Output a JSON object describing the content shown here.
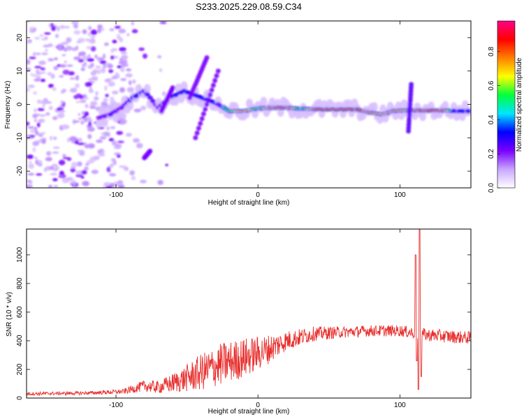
{
  "title": "S233.2025.229.08.59.C34",
  "chart_data": [
    {
      "type": "heatmap",
      "title": "S233.2025.229.08.59.C34",
      "xlabel": "Height of straight line (km)",
      "ylabel": "Frequency (Hz)",
      "xlim": [
        -163,
        150
      ],
      "ylim": [
        -25,
        25
      ],
      "x_ticks": [
        -100,
        0,
        100
      ],
      "y_ticks": [
        -20,
        -10,
        0,
        10,
        20
      ],
      "colorbar": {
        "label": "Normalized spectral amplitude",
        "range": [
          0.0,
          0.98
        ],
        "ticks": [
          0.0,
          0.2,
          0.4,
          0.6,
          0.8
        ],
        "colors": [
          "#ffffff",
          "#c9a6ff",
          "#7a00ff",
          "#0000ff",
          "#00e5ff",
          "#00ff3c",
          "#ffff00",
          "#ff8000",
          "#ff0000",
          "#ff0088"
        ]
      },
      "ridge": {
        "points": [
          {
            "x": -112,
            "y": -4,
            "a": 0.2
          },
          {
            "x": -104,
            "y": -3,
            "a": 0.25
          },
          {
            "x": -96,
            "y": -1,
            "a": 0.22
          },
          {
            "x": -88,
            "y": 2,
            "a": 0.3
          },
          {
            "x": -80,
            "y": 4,
            "a": 0.28
          },
          {
            "x": -70,
            "y": -1,
            "a": 0.22
          },
          {
            "x": -62,
            "y": 2,
            "a": 0.3
          },
          {
            "x": -52,
            "y": 4,
            "a": 0.35
          },
          {
            "x": -30,
            "y": 0.5,
            "a": 0.3
          },
          {
            "x": -20,
            "y": -2,
            "a": 0.6
          },
          {
            "x": -10,
            "y": -2,
            "a": 0.75
          },
          {
            "x": 0,
            "y": -1.2,
            "a": 0.55
          },
          {
            "x": 10,
            "y": -1,
            "a": 0.8
          },
          {
            "x": 20,
            "y": -1,
            "a": 0.85
          },
          {
            "x": 30,
            "y": -1.3,
            "a": 0.5
          },
          {
            "x": 45,
            "y": -1.5,
            "a": 0.97
          },
          {
            "x": 60,
            "y": -1.5,
            "a": 0.97
          },
          {
            "x": 70,
            "y": -1.5,
            "a": 0.9
          },
          {
            "x": 80,
            "y": -2.5,
            "a": 0.75
          },
          {
            "x": 88,
            "y": -3,
            "a": 0.7
          },
          {
            "x": 95,
            "y": -2,
            "a": 0.75
          },
          {
            "x": 103,
            "y": -1.8,
            "a": 0.7
          },
          {
            "x": 118,
            "y": -1.8,
            "a": 0.9
          },
          {
            "x": 130,
            "y": -1.8,
            "a": 0.85
          },
          {
            "x": 140,
            "y": -2,
            "a": 0.35
          },
          {
            "x": 150,
            "y": -2,
            "a": 0.3
          }
        ],
        "streaks": [
          {
            "x0": -36,
            "y0": 14,
            "x1": -48,
            "y1": 2,
            "a": 0.22
          },
          {
            "x0": -28,
            "y0": 10,
            "x1": -44,
            "y1": -10,
            "a": 0.22
          },
          {
            "x0": -60,
            "y0": 5,
            "x1": -68,
            "y1": -2,
            "a": 0.22
          },
          {
            "x0": 108,
            "y0": 6,
            "x1": 106,
            "y1": -8,
            "a": 0.25
          },
          {
            "x0": -76,
            "y0": -14,
            "x1": -80,
            "y1": -16,
            "a": 0.22
          }
        ]
      }
    },
    {
      "type": "line",
      "xlabel": "Height of straight line (km)",
      "ylabel": "SNR (10 * v/v)",
      "xlim": [
        -163,
        150
      ],
      "ylim": [
        0,
        1180
      ],
      "x_ticks": [
        -100,
        0,
        100
      ],
      "y_ticks": [
        0,
        200,
        400,
        600,
        800,
        1000
      ],
      "color": "#e8302e",
      "profile": [
        {
          "x": -163,
          "y": 30,
          "noise": 12
        },
        {
          "x": -120,
          "y": 35,
          "noise": 12
        },
        {
          "x": -95,
          "y": 45,
          "noise": 18
        },
        {
          "x": -80,
          "y": 85,
          "noise": 40
        },
        {
          "x": -70,
          "y": 75,
          "noise": 45
        },
        {
          "x": -55,
          "y": 120,
          "noise": 80
        },
        {
          "x": -40,
          "y": 180,
          "noise": 130
        },
        {
          "x": -25,
          "y": 240,
          "noise": 150
        },
        {
          "x": -10,
          "y": 280,
          "noise": 140
        },
        {
          "x": 5,
          "y": 330,
          "noise": 110
        },
        {
          "x": 20,
          "y": 400,
          "noise": 70
        },
        {
          "x": 40,
          "y": 450,
          "noise": 50
        },
        {
          "x": 60,
          "y": 460,
          "noise": 40
        },
        {
          "x": 80,
          "y": 470,
          "noise": 40
        },
        {
          "x": 100,
          "y": 470,
          "noise": 40
        },
        {
          "x": 120,
          "y": 440,
          "noise": 45
        },
        {
          "x": 150,
          "y": 420,
          "noise": 45
        }
      ],
      "spikes": [
        {
          "x": 111,
          "y": 1000
        },
        {
          "x": 112,
          "y": 260
        },
        {
          "x": 113,
          "y": 60
        },
        {
          "x": 114,
          "y": 1180
        },
        {
          "x": 115,
          "y": 150
        }
      ]
    }
  ]
}
